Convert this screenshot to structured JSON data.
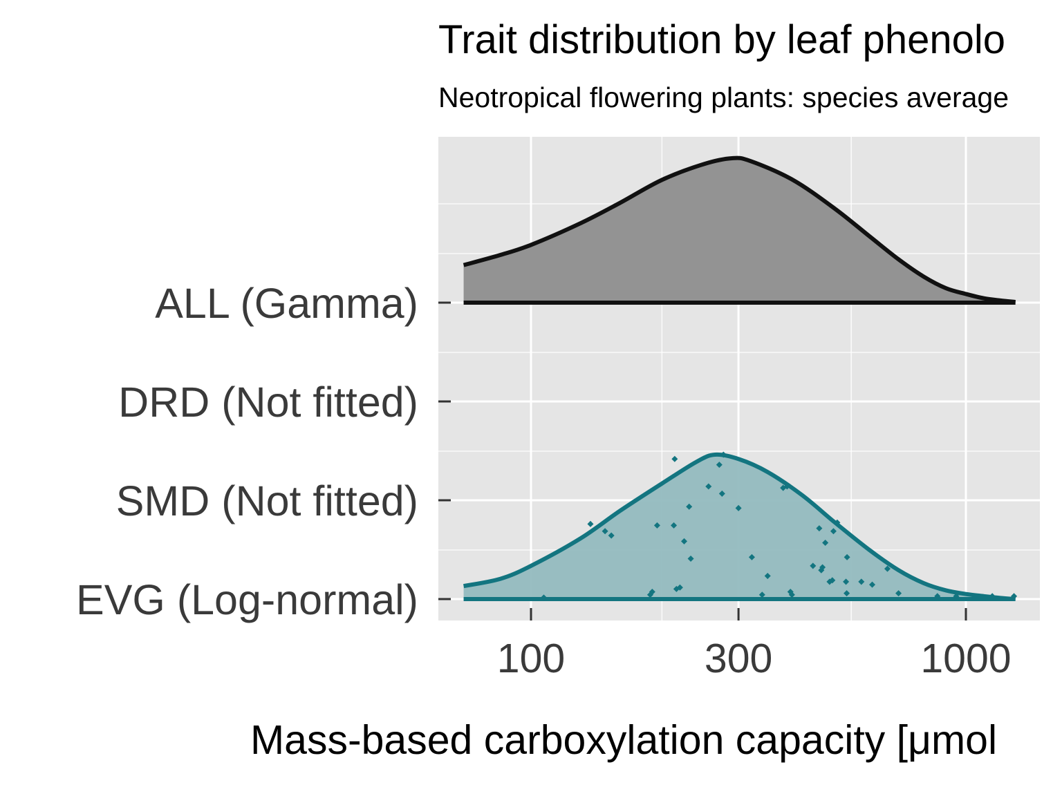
{
  "chart_data": {
    "type": "ridgeline-density",
    "title": "Trait distribution by leaf phenolo",
    "subtitle": "Neotropical flowering plants: species average",
    "xlabel": "Mass-based carboxylation capacity [μmol",
    "x_scale": "log10",
    "xlim": [
      63,
      1600
    ],
    "x_ticks": [
      {
        "value": 100,
        "label": "100"
      },
      {
        "value": 300,
        "label": "300"
      },
      {
        "value": 1000,
        "label": "1000"
      }
    ],
    "grid": true,
    "categories": [
      "ALL (Gamma)",
      "DRD (Not fitted)",
      "SMD (Not fitted)",
      "EVG (Log-normal)"
    ],
    "colors": {
      "all_fill": "#939393",
      "all_line": "#111111",
      "evg_fill": "#93babf",
      "evg_line": "#137580",
      "points": "#137580",
      "panel": "#e5e5e5",
      "grid": "#ffffff"
    },
    "series": [
      {
        "name": "ALL (Gamma)",
        "category_index": 0,
        "distribution": "gamma",
        "curve": [
          [
            70,
            0.26
          ],
          [
            85,
            0.33
          ],
          [
            100,
            0.4
          ],
          [
            130,
            0.55
          ],
          [
            160,
            0.69
          ],
          [
            200,
            0.85
          ],
          [
            250,
            0.96
          ],
          [
            290,
            1.0
          ],
          [
            320,
            0.98
          ],
          [
            400,
            0.85
          ],
          [
            500,
            0.65
          ],
          [
            600,
            0.46
          ],
          [
            700,
            0.3
          ],
          [
            800,
            0.18
          ],
          [
            900,
            0.1
          ],
          [
            1000,
            0.06
          ],
          [
            1100,
            0.03
          ],
          [
            1200,
            0.015
          ],
          [
            1300,
            0.005
          ]
        ]
      },
      {
        "name": "EVG (Log-normal)",
        "category_index": 3,
        "distribution": "log-normal",
        "curve": [
          [
            70,
            0.09
          ],
          [
            85,
            0.14
          ],
          [
            100,
            0.23
          ],
          [
            130,
            0.42
          ],
          [
            160,
            0.61
          ],
          [
            200,
            0.8
          ],
          [
            240,
            0.95
          ],
          [
            265,
            1.0
          ],
          [
            300,
            0.97
          ],
          [
            350,
            0.88
          ],
          [
            420,
            0.72
          ],
          [
            500,
            0.53
          ],
          [
            600,
            0.34
          ],
          [
            700,
            0.2
          ],
          [
            800,
            0.11
          ],
          [
            900,
            0.06
          ],
          [
            1000,
            0.035
          ],
          [
            1100,
            0.02
          ],
          [
            1200,
            0.008
          ],
          [
            1300,
            0.0
          ]
        ],
        "points": [
          [
            107,
            0.01
          ],
          [
            137,
            0.52
          ],
          [
            148,
            0.47
          ],
          [
            153,
            0.44
          ],
          [
            188,
            0.03
          ],
          [
            190,
            0.05
          ],
          [
            195,
            0.51
          ],
          [
            213,
            0.51
          ],
          [
            214,
            0.97
          ],
          [
            216,
            0.07
          ],
          [
            220,
            0.08
          ],
          [
            225,
            0.4
          ],
          [
            231,
            0.64
          ],
          [
            233,
            0.28
          ],
          [
            256,
            0.78
          ],
          [
            271,
            0.93
          ],
          [
            275,
            0.73
          ],
          [
            277,
            1.0
          ],
          [
            300,
            0.63
          ],
          [
            322,
            0.29
          ],
          [
            340,
            0.03
          ],
          [
            350,
            0.16
          ],
          [
            380,
            0.77
          ],
          [
            388,
            0.78
          ],
          [
            395,
            0.05
          ],
          [
            398,
            0.03
          ],
          [
            445,
            0.23
          ],
          [
            460,
            0.49
          ],
          [
            465,
            0.2
          ],
          [
            468,
            0.22
          ],
          [
            475,
            0.39
          ],
          [
            486,
            0.12
          ],
          [
            493,
            0.13
          ],
          [
            496,
            0.47
          ],
          [
            506,
            0.53
          ],
          [
            530,
            0.12
          ],
          [
            532,
            0.04
          ],
          [
            533,
            0.29
          ],
          [
            575,
            0.12
          ],
          [
            609,
            0.1
          ],
          [
            660,
            0.21
          ],
          [
            700,
            0.04
          ],
          [
            860,
            0.02
          ],
          [
            950,
            0.02
          ],
          [
            1150,
            0.02
          ],
          [
            1290,
            0.02
          ]
        ]
      }
    ]
  }
}
